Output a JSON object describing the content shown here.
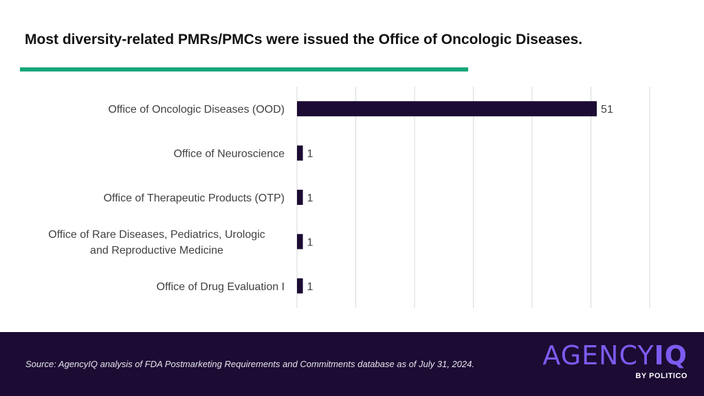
{
  "header": {
    "title": "Most diversity-related PMRs/PMCs were issued the Office of Oncologic Diseases."
  },
  "chart_data": {
    "type": "bar",
    "orientation": "horizontal",
    "categories": [
      "Office of Oncologic Diseases (OOD)",
      "Office of Neuroscience",
      "Office of Therapeutic Products (OTP)",
      "Office of Rare Diseases, Pediatrics, Urologic and Reproductive Medicine",
      "Office of Drug Evaluation I"
    ],
    "values": [
      51,
      1,
      1,
      1,
      1
    ],
    "data_labels": [
      "51",
      "1",
      "1",
      "1",
      "1"
    ],
    "xlim": [
      0,
      60
    ],
    "x_gridlines": [
      0,
      10,
      20,
      30,
      40,
      50,
      60
    ],
    "grid": true,
    "show_x_tick_labels": false,
    "bar_color": "#1c0b33",
    "gridline_color": "#d9d9d9"
  },
  "footer": {
    "source": "Source: AgencyIQ analysis of FDA Postmarketing Requirements and Commitments database as of July 31, 2024.",
    "logo_main_a": "AGENCY",
    "logo_main_b": "IQ",
    "logo_sub": "BY POLITICO"
  },
  "colors": {
    "accent": "#16a77a",
    "brand_dark": "#1c0b33",
    "brand_purple": "#7b5cf0"
  }
}
